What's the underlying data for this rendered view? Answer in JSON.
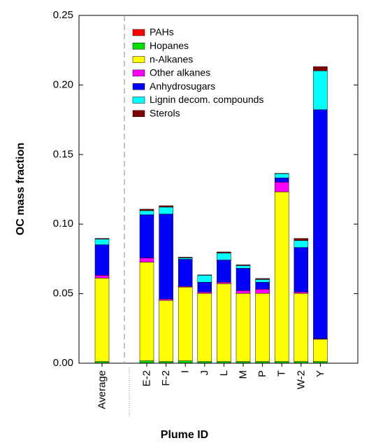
{
  "chart_data": {
    "type": "stacked_bar",
    "x_label": "Plume ID",
    "y_label": "OC mass fraction",
    "categories": [
      "Average",
      "E-2",
      "F-2",
      "I",
      "J",
      "L",
      "M",
      "P",
      "T",
      "W-2",
      "Y"
    ],
    "ylim": [
      0,
      0.25
    ],
    "yticks": [
      {
        "value": 0,
        "label": "0.00"
      },
      {
        "value": 0.05,
        "label": "0.05"
      },
      {
        "value": 0.1,
        "label": "0.10"
      },
      {
        "value": 0.15,
        "label": "0.15"
      },
      {
        "value": 0.2,
        "label": "0.20"
      },
      {
        "value": 0.25,
        "label": "0.25"
      }
    ],
    "legend": "upper left",
    "series": [
      {
        "name": "PAHs",
        "color": "#ff0000",
        "values": [
          0.0002,
          0.0002,
          0.0002,
          0.0002,
          0.0002,
          0.0002,
          0.0002,
          0.0002,
          0.0002,
          0.0002,
          0.0002
        ]
      },
      {
        "name": "Hopanes",
        "color": "#00e000",
        "values": [
          0.001,
          0.0015,
          0.001,
          0.0015,
          0.001,
          0.001,
          0.001,
          0.001,
          0.001,
          0.001,
          0.001
        ]
      },
      {
        "name": "n-Alkanes",
        "color": "#ffff00",
        "values": [
          0.06,
          0.071,
          0.044,
          0.053,
          0.049,
          0.056,
          0.049,
          0.049,
          0.122,
          0.049,
          0.016
        ]
      },
      {
        "name": "Other alkanes",
        "color": "#ff00ff",
        "values": [
          0.002,
          0.003,
          0.001,
          0.0005,
          0.001,
          0.001,
          0.002,
          0.003,
          0.007,
          0.001,
          0.0005
        ]
      },
      {
        "name": "Anhydrosugars",
        "color": "#0000ff",
        "values": [
          0.022,
          0.031,
          0.061,
          0.0195,
          0.007,
          0.016,
          0.016,
          0.005,
          0.003,
          0.032,
          0.1645
        ]
      },
      {
        "name": "Lignin decom. compounds",
        "color": "#00ffff",
        "values": [
          0.004,
          0.003,
          0.005,
          0.001,
          0.005,
          0.005,
          0.002,
          0.002,
          0.003,
          0.005,
          0.028
        ]
      },
      {
        "name": "Sterols",
        "color": "#800000",
        "values": [
          0.0005,
          0.001,
          0.001,
          0.0005,
          0.0003,
          0.0008,
          0.0005,
          0.0007,
          0.0003,
          0.0015,
          0.003
        ]
      }
    ]
  }
}
